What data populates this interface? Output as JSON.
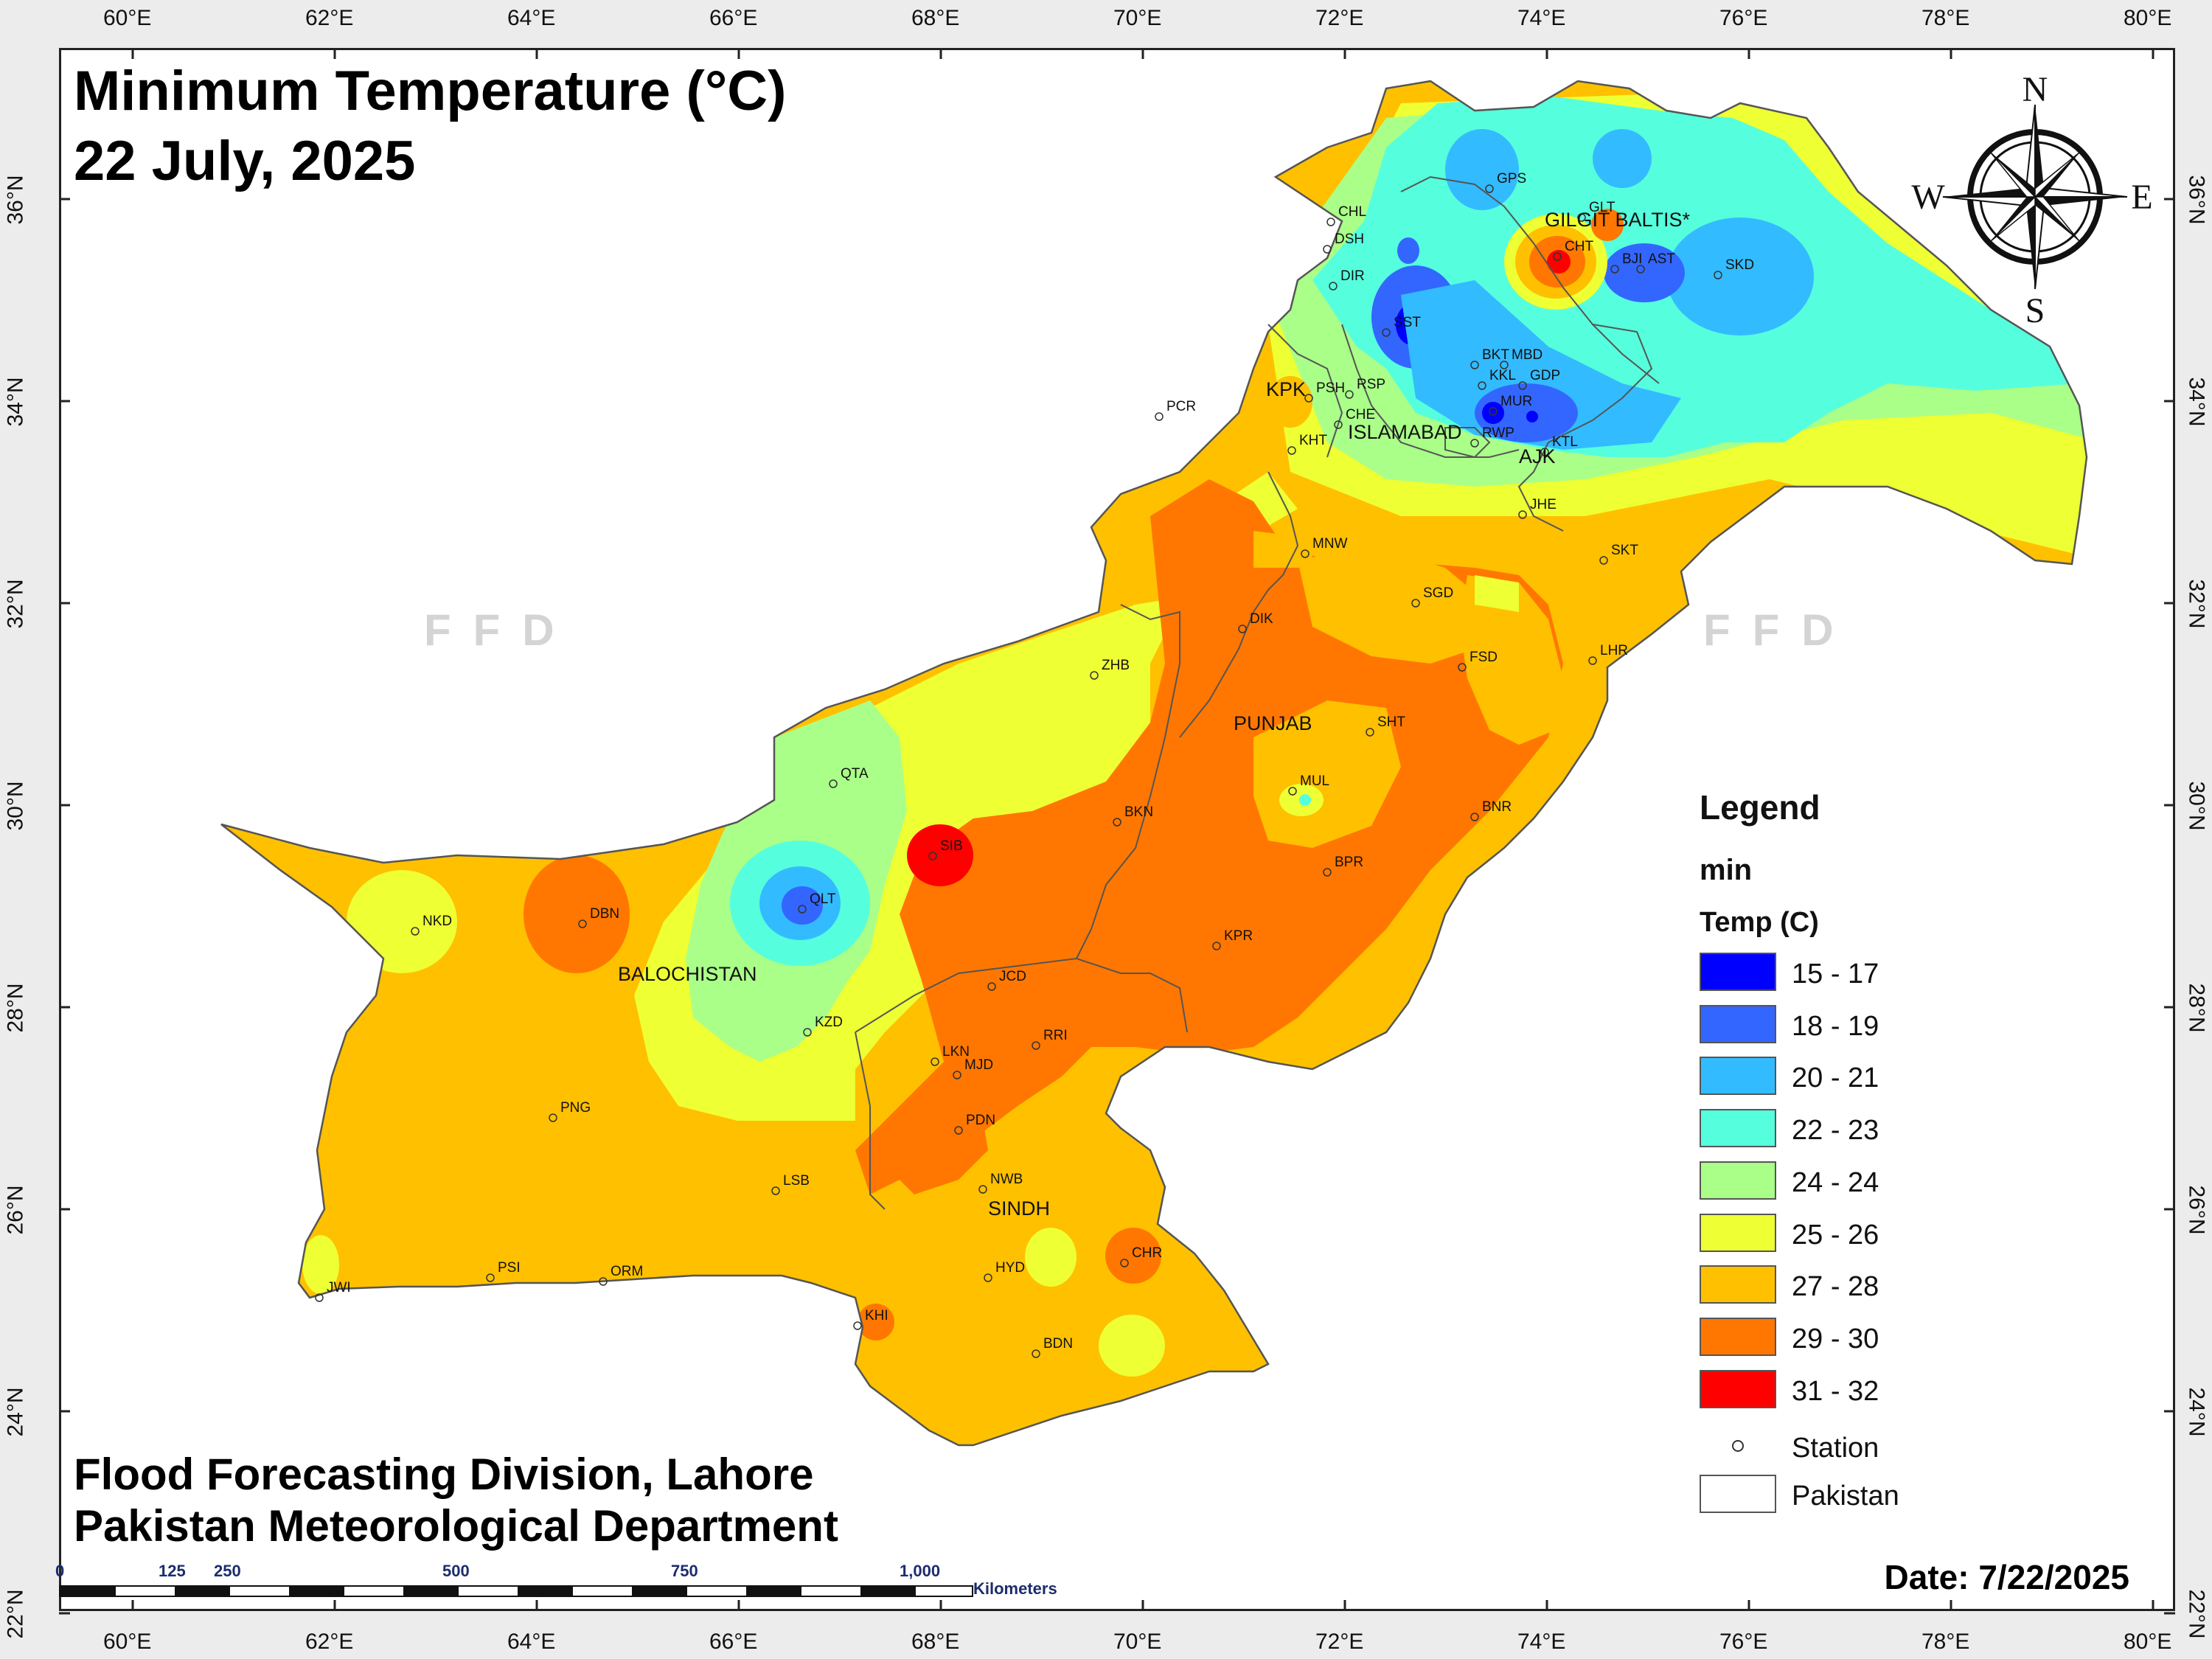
{
  "title": {
    "line1": "Minimum Temperature (°C)",
    "line2": "22 July, 2025"
  },
  "footer": {
    "line1": "Flood Forecasting Division, Lahore",
    "line2": "Pakistan Meteorological Department"
  },
  "date_label": "Date: 7/22/2025",
  "watermark": "FFD",
  "compass": {
    "n": "N",
    "s": "S",
    "e": "E",
    "w": "W"
  },
  "lon_ticks": [
    "60°E",
    "62°E",
    "64°E",
    "66°E",
    "68°E",
    "70°E",
    "72°E",
    "74°E",
    "76°E",
    "78°E",
    "80°E"
  ],
  "lat_ticks": [
    "36°N",
    "34°N",
    "32°N",
    "30°N",
    "28°N",
    "26°N",
    "24°N",
    "22°N"
  ],
  "legend": {
    "title": "Legend",
    "subtitle": "min",
    "field": "Temp (C)",
    "classes": [
      {
        "label": "15 - 17",
        "color": "#0000ff"
      },
      {
        "label": "18 - 19",
        "color": "#3366ff"
      },
      {
        "label": "20 - 21",
        "color": "#33bbff"
      },
      {
        "label": "22 - 23",
        "color": "#55ffdd"
      },
      {
        "label": "24 - 24",
        "color": "#aaff88"
      },
      {
        "label": "25 - 26",
        "color": "#eeff33"
      },
      {
        "label": "27 - 28",
        "color": "#ffc000"
      },
      {
        "label": "29 - 30",
        "color": "#ff7700"
      },
      {
        "label": "31 - 32",
        "color": "#ff0000"
      }
    ],
    "station_label": "Station",
    "pakistan_label": "Pakistan"
  },
  "scale_bar": {
    "labels": [
      "0",
      "125",
      "250",
      "500",
      "750",
      "1,000"
    ],
    "unit": "Kilometers"
  },
  "provinces": [
    "GILGIT BALTIS*",
    "KPK",
    "ISLAMABAD",
    "AJK",
    "PUNJAB",
    "BALOCHISTAN",
    "SINDH"
  ],
  "stations": [
    "CHL",
    "DSH",
    "DIR",
    "GPS",
    "GLT",
    "CHT",
    "BJI",
    "AST",
    "SKD",
    "SST",
    "BKT",
    "MBD",
    "KKL",
    "GDP",
    "MUR",
    "RWP",
    "KTL",
    "PSH",
    "RSP",
    "CHE",
    "KHT",
    "PCR",
    "JHE",
    "SKT",
    "MNW",
    "SGD",
    "DIK",
    "FSD",
    "LHR",
    "ZHB",
    "SHT",
    "MUL",
    "QTA",
    "BKN",
    "BNR",
    "SIB",
    "BPR",
    "QLT",
    "NKD",
    "DBN",
    "KPR",
    "JCD",
    "KZD",
    "RRI",
    "LKN",
    "MJD",
    "PDN",
    "PNG",
    "LSB",
    "NWB",
    "CHR",
    "HYD",
    "PSI",
    "ORM",
    "JWI",
    "KHI",
    "BDN"
  ]
}
